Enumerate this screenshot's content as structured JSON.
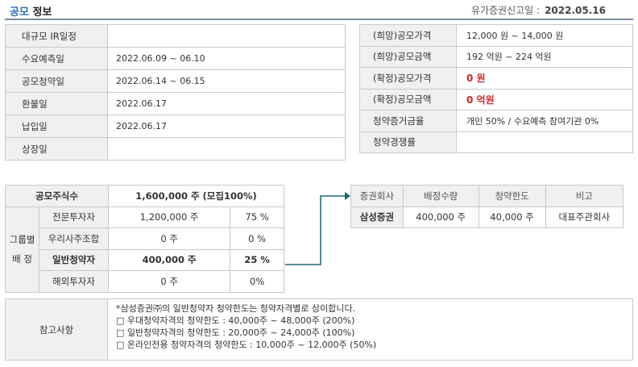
{
  "header": {
    "title_accent": "공모",
    "title_rest": "정보",
    "filing_label": "유가증권신고일 :",
    "filing_date": "2022.05.16"
  },
  "schedule": [
    {
      "label": "대규모 IR일정",
      "value": ""
    },
    {
      "label": "수요예측일",
      "value": "2022.06.09 ~ 06.10"
    },
    {
      "label": "공모청약일",
      "value": "2022.06.14 ~ 06.15"
    },
    {
      "label": "환불일",
      "value": "2022.06.17"
    },
    {
      "label": "납입일",
      "value": "2022.06.17"
    },
    {
      "label": "상장일",
      "value": ""
    }
  ],
  "pricing": [
    {
      "label": "(희망)공모가격",
      "value": "12,000 원 ~ 14,000 원"
    },
    {
      "label": "(희망)공모금액",
      "value": "192 억원  ~ 224 억원"
    },
    {
      "label": "(확정)공모가격",
      "value": "0 원"
    },
    {
      "label": "(확정)공모금액",
      "value": "0 억원"
    },
    {
      "label": "청약증거금율",
      "value": "개인 50% / 수요예측 참여기관 0%"
    },
    {
      "label": "청약경쟁률",
      "value": ""
    }
  ],
  "allocation": {
    "total_label": "공모주식수",
    "total_value": "1,600,000 주 (모집100%)",
    "group_label_1": "그룹별",
    "group_label_2": "배 정",
    "rows": [
      {
        "name": "전문투자자",
        "shares": "1,200,000 주",
        "pct": "75 %"
      },
      {
        "name": "우리사주조합",
        "shares": "0 주",
        "pct": "0 %"
      },
      {
        "name": "일반청약자",
        "shares": "400,000 주",
        "pct": "25 %"
      },
      {
        "name": "해외투자자",
        "shares": "0 주",
        "pct": "0%"
      }
    ]
  },
  "underwriters": {
    "headers": [
      "증권회사",
      "배정수량",
      "청약한도",
      "비고"
    ],
    "rows": [
      {
        "company": "삼성증권",
        "allocation": "400,000 주",
        "limit": "40,000 주",
        "note": "대표주관회사"
      }
    ]
  },
  "notes": {
    "label": "참고사항",
    "lines": [
      "*삼성증권㈜의 일반청약자 청약한도는 청약자격별로 상이합니다.",
      "□ 우대청약자격의 청약한도 : 40,000주 ~ 48,000주 (200%)",
      "□ 일반청약자격의 청약한도 : 20,000주 ~ 24,000주 (100%)",
      "□ 온라인전용 청약자격의 청약한도 : 10,000주 ~ 12,000주 (50%)"
    ]
  },
  "colors": {
    "accent": "#2a6ebb",
    "confirmed": "#d0272b",
    "connector": "#1f6a78"
  }
}
